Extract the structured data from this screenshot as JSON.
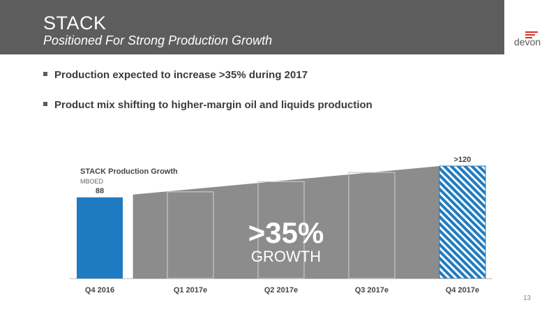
{
  "header": {
    "title": "STACK",
    "subtitle": "Positioned For Strong Production Growth"
  },
  "logo": {
    "text": "devon"
  },
  "bullets": [
    "Production expected to increase >35% during 2017",
    "Product mix shifting to higher-margin oil and liquids production"
  ],
  "chart_data": {
    "type": "bar",
    "title": "STACK Production Growth",
    "unit": "MBOED",
    "categories": [
      "Q4 2016",
      "Q1 2017e",
      "Q2 2017e",
      "Q3 2017e",
      "Q4 2017e"
    ],
    "values": [
      88,
      94,
      105,
      115,
      122
    ],
    "data_labels": [
      "88",
      "",
      "",
      "",
      ">120"
    ],
    "bar_styles": [
      "solid",
      "outline",
      "outline",
      "outline",
      "hatched"
    ],
    "ylim": [
      0,
      125
    ],
    "growth_label": ">35%",
    "growth_text": "GROWTH",
    "colors": {
      "solid": "#1f7bc1",
      "hatch": "#1f7bc1",
      "wedge": "#8c8c8c",
      "outline": "#c8c8c8",
      "axis": "#bfbfbf"
    }
  },
  "page_number": "13"
}
